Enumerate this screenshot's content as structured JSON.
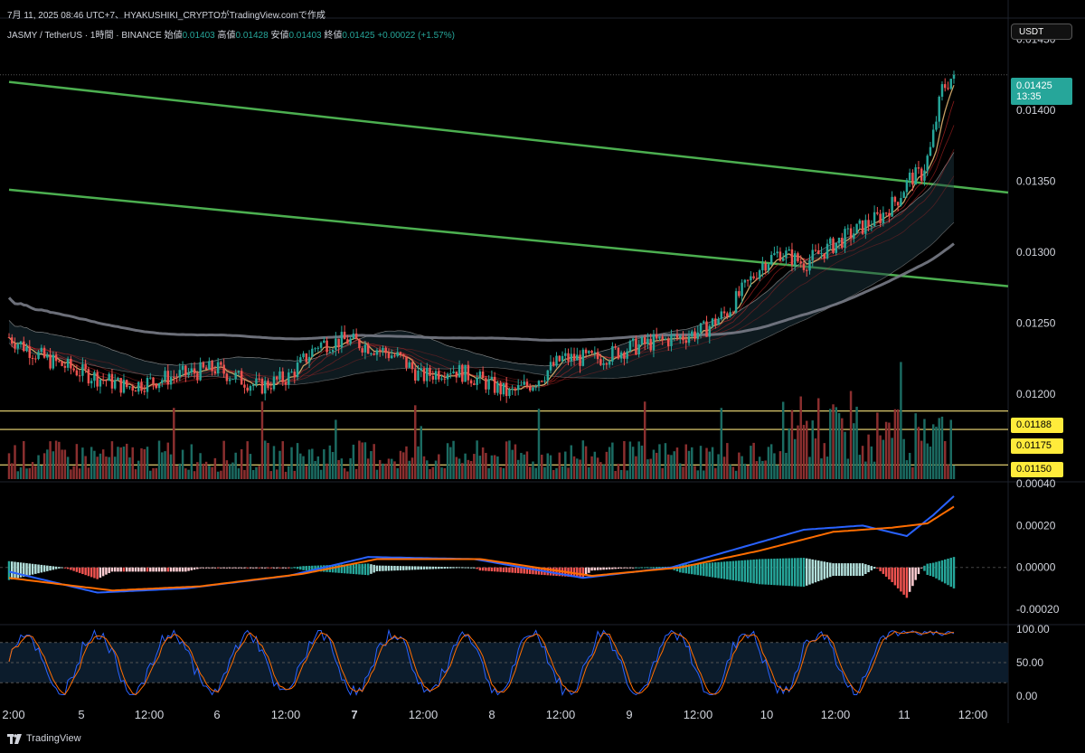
{
  "caption": "7月 11, 2025 08:46 UTC+7、HYAKUSHIKI_CRYPTOがTradingView.comで作成",
  "header": {
    "symbol": "JASMY / TetherUS · 1時間 · BINANCE",
    "open_label": "始値",
    "open": "0.01403",
    "high_label": "高値",
    "high": "0.01428",
    "low_label": "安値",
    "low": "0.01403",
    "close_label": "終値",
    "close": "0.01425",
    "change": "+0.00022 (+1.57%)"
  },
  "currency_button": "USDT",
  "brand": "TradingView",
  "colors": {
    "up": "#26a69a",
    "down": "#ef5350",
    "trendline": "#4caf50",
    "ma200": "#787b86",
    "macd": "#2962ff",
    "signal": "#ff6d00",
    "level": "#f5e07a",
    "stoch_k": "#2962ff",
    "stoch_d": "#ff6d00"
  },
  "price_tag": {
    "value": "0.01425",
    "countdown": "13:35"
  },
  "level_tags": [
    "0.01188",
    "0.01175",
    "0.01150"
  ],
  "chart_data": [
    {
      "type": "candlestick",
      "panel": "price",
      "y_ticks": [
        "0.01450",
        "0.01400",
        "0.01350",
        "0.01300",
        "0.01250",
        "0.01200"
      ],
      "x_ticks": [
        "2:00",
        "5",
        "12:00",
        "6",
        "12:00",
        "7",
        "12:00",
        "8",
        "12:00",
        "9",
        "12:00",
        "10",
        "12:00",
        "11",
        "12:00"
      ],
      "ylim": [
        0.0114,
        0.01465
      ],
      "last_price": 0.01425,
      "horizontal_levels": [
        0.01188,
        0.01175,
        0.0115
      ],
      "trendlines": [
        {
          "from": [
            0,
            0.0142
          ],
          "to": [
            1,
            0.01342
          ]
        },
        {
          "from": [
            0,
            0.01344
          ],
          "to": [
            1,
            0.01276
          ]
        }
      ],
      "keypoints": [
        [
          0,
          0.0124
        ],
        [
          12,
          0.01225
        ],
        [
          25,
          0.01215
        ],
        [
          40,
          0.01205
        ],
        [
          55,
          0.01212
        ],
        [
          70,
          0.01218
        ],
        [
          85,
          0.01205
        ],
        [
          95,
          0.01212
        ],
        [
          105,
          0.01235
        ],
        [
          115,
          0.01238
        ],
        [
          125,
          0.01232
        ],
        [
          133,
          0.01225
        ],
        [
          140,
          0.01212
        ],
        [
          150,
          0.01218
        ],
        [
          160,
          0.0121
        ],
        [
          170,
          0.012
        ],
        [
          178,
          0.01208
        ],
        [
          188,
          0.01225
        ],
        [
          200,
          0.01225
        ],
        [
          210,
          0.01232
        ],
        [
          218,
          0.01236
        ],
        [
          228,
          0.0124
        ],
        [
          236,
          0.01245
        ],
        [
          244,
          0.01258
        ],
        [
          250,
          0.01275
        ],
        [
          256,
          0.01292
        ],
        [
          262,
          0.013
        ],
        [
          270,
          0.01292
        ],
        [
          280,
          0.01305
        ],
        [
          290,
          0.01318
        ],
        [
          296,
          0.01325
        ],
        [
          302,
          0.01338
        ],
        [
          306,
          0.01352
        ],
        [
          310,
          0.01355
        ],
        [
          313,
          0.01372
        ],
        [
          317,
          0.01415
        ],
        [
          321,
          0.01425
        ]
      ],
      "n_candles": 322
    },
    {
      "type": "bar",
      "panel": "volume",
      "series": [
        {
          "name": "",
          "values": "per-candle volume (relative)"
        }
      ]
    },
    {
      "type": "line",
      "panel": "macd",
      "y_ticks": [
        "0.00040",
        "0.00020",
        "0.00000",
        "-0.00020"
      ],
      "ylim": [
        -0.00026,
        0.0004
      ],
      "macd_keypoints": [
        [
          0,
          -2e-05
        ],
        [
          30,
          -0.00012
        ],
        [
          60,
          -0.0001
        ],
        [
          95,
          -4e-05
        ],
        [
          122,
          5e-05
        ],
        [
          158,
          4e-05
        ],
        [
          195,
          -5e-05
        ],
        [
          225,
          0.0
        ],
        [
          250,
          0.0001
        ],
        [
          270,
          0.00018
        ],
        [
          290,
          0.0002
        ],
        [
          305,
          0.00015
        ],
        [
          314,
          0.00025
        ],
        [
          321,
          0.00034
        ]
      ],
      "signal_keypoints": [
        [
          0,
          -5e-05
        ],
        [
          35,
          -0.00011
        ],
        [
          65,
          -9e-05
        ],
        [
          100,
          -3e-05
        ],
        [
          125,
          4e-05
        ],
        [
          160,
          4e-05
        ],
        [
          198,
          -4e-05
        ],
        [
          228,
          0.0
        ],
        [
          255,
          8e-05
        ],
        [
          280,
          0.00017
        ],
        [
          300,
          0.00019
        ],
        [
          312,
          0.00021
        ],
        [
          321,
          0.00029
        ]
      ]
    },
    {
      "type": "line",
      "panel": "stoch_rsi",
      "y_ticks": [
        "100.00",
        "50.00",
        "0.00"
      ],
      "ylim": [
        0,
        100
      ],
      "band": [
        20,
        80
      ]
    }
  ]
}
